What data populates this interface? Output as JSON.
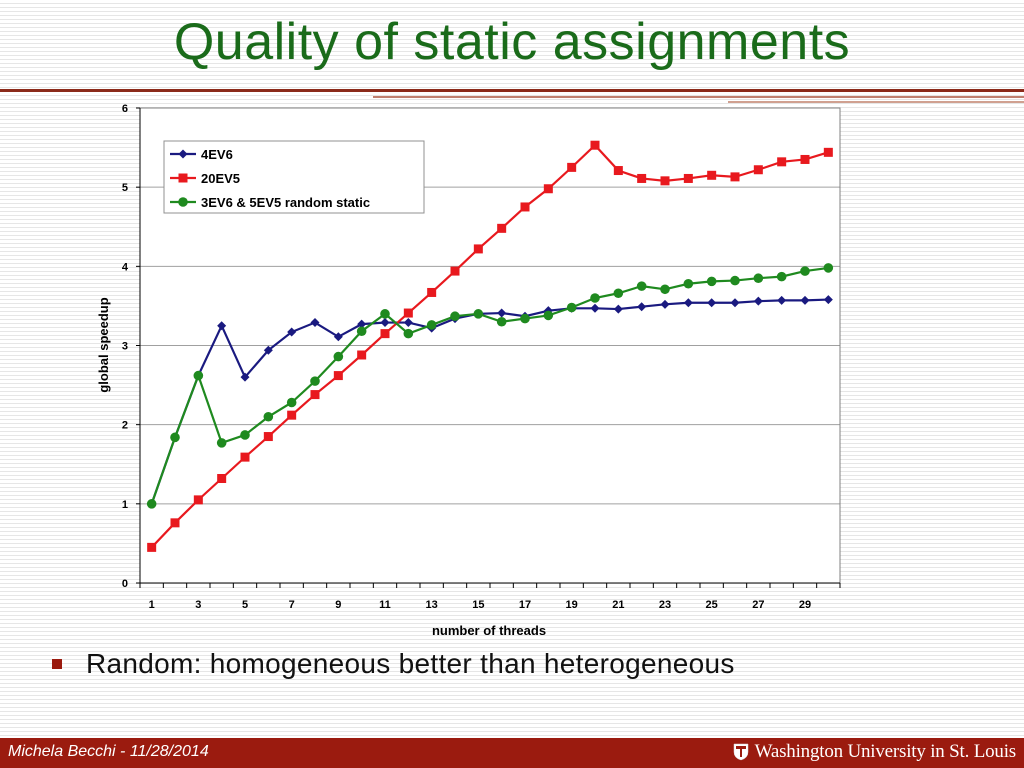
{
  "slide": {
    "title": "Quality of static assignments",
    "bullet": "Random: homogeneous better than heterogeneous",
    "footer_author": "Michela Becchi - 11/28/2014",
    "footer_logo_text": "Washington University in St. Louis"
  },
  "colors": {
    "title": "#1a6b1a",
    "footer_bg": "#9b1b0f"
  },
  "chart_data": {
    "type": "line",
    "title": "",
    "xlabel": "number of threads",
    "ylabel": "global speedup",
    "xlim": [
      0.5,
      30.5
    ],
    "ylim": [
      0,
      6
    ],
    "xticks": [
      1,
      3,
      5,
      7,
      9,
      11,
      13,
      15,
      17,
      19,
      21,
      23,
      25,
      27,
      29
    ],
    "yticks": [
      0,
      1,
      2,
      3,
      4,
      5,
      6
    ],
    "grid": "horizontal",
    "legend_position": "top-left",
    "x": [
      1,
      2,
      3,
      4,
      5,
      6,
      7,
      8,
      9,
      10,
      11,
      12,
      13,
      14,
      15,
      16,
      17,
      18,
      19,
      20,
      21,
      22,
      23,
      24,
      25,
      26,
      27,
      28,
      29,
      30
    ],
    "series": [
      {
        "name": "4EV6",
        "color": "#1a1a80",
        "marker": "diamond",
        "values": [
          1.0,
          1.84,
          2.62,
          3.25,
          2.6,
          2.94,
          3.17,
          3.29,
          3.11,
          3.27,
          3.29,
          3.29,
          3.22,
          3.34,
          3.4,
          3.41,
          3.37,
          3.44,
          3.47,
          3.47,
          3.46,
          3.49,
          3.52,
          3.54,
          3.54,
          3.54,
          3.56,
          3.57,
          3.57,
          3.58
        ]
      },
      {
        "name": "20EV5",
        "color": "#e8191e",
        "marker": "square",
        "values": [
          0.45,
          0.76,
          1.05,
          1.32,
          1.59,
          1.85,
          2.12,
          2.38,
          2.62,
          2.88,
          3.15,
          3.41,
          3.67,
          3.94,
          4.22,
          4.48,
          4.75,
          4.98,
          5.25,
          5.53,
          5.21,
          5.11,
          5.08,
          5.11,
          5.15,
          5.13,
          5.22,
          5.32,
          5.35,
          5.44
        ]
      },
      {
        "name": "3EV6 & 5EV5 random static",
        "color": "#1f8a1f",
        "marker": "circle",
        "values": [
          1.0,
          1.84,
          2.62,
          1.77,
          1.87,
          2.1,
          2.28,
          2.55,
          2.86,
          3.18,
          3.4,
          3.15,
          3.26,
          3.37,
          3.4,
          3.3,
          3.34,
          3.38,
          3.48,
          3.6,
          3.66,
          3.75,
          3.71,
          3.78,
          3.81,
          3.82,
          3.85,
          3.87,
          3.94,
          3.98
        ]
      }
    ]
  }
}
